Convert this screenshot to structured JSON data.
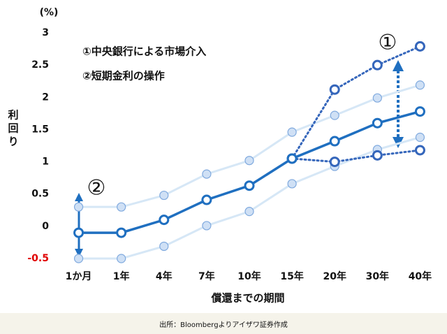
{
  "chart_data": {
    "type": "line",
    "unit_label": "(%)",
    "y_label": "利回り",
    "x_label": "償還までの期間",
    "source": "出所：Bloombergよりアイザワ証券作成",
    "annotations": [
      "①中央銀行による市場介入",
      "②短期金利の操作",
      "①",
      "②"
    ],
    "categories": [
      "1か月",
      "1年",
      "4年",
      "7年",
      "10年",
      "15年",
      "20年",
      "30年",
      "40年"
    ],
    "ylim": [
      -0.5,
      3
    ],
    "yticks": [
      -0.5,
      0,
      0.5,
      1,
      1.5,
      2,
      2.5,
      3
    ],
    "negative_tick_color": "#e00000",
    "series": [
      {
        "color": "#d6e7f6",
        "marker_fill": "#cfe0f5",
        "marker_stroke": "#7fa9de",
        "style": "solid",
        "values": [
          0.3,
          0.3,
          0.48,
          0.81,
          1.02,
          1.46,
          1.72,
          1.99,
          2.19
        ]
      },
      {
        "color": "#d6e7f6",
        "marker_fill": "#cfe0f5",
        "marker_stroke": "#7fa9de",
        "style": "solid",
        "values": [
          -0.5,
          -0.5,
          -0.31,
          0.01,
          0.23,
          0.66,
          0.93,
          1.19,
          1.38
        ]
      },
      {
        "color": "#3566bb",
        "marker_fill": "#ffffff",
        "marker_stroke": "#3566bb",
        "style": "dotted",
        "values": [
          null,
          null,
          null,
          null,
          null,
          1.05,
          2.12,
          2.5,
          2.79
        ]
      },
      {
        "color": "#3566bb",
        "marker_fill": "#ffffff",
        "marker_stroke": "#3566bb",
        "style": "dotted",
        "values": [
          null,
          null,
          null,
          null,
          null,
          1.05,
          1.0,
          1.1,
          1.18
        ]
      },
      {
        "color": "#1f6fc0",
        "marker_fill": "#ffffff",
        "marker_stroke": "#1f6fc0",
        "style": "solid",
        "values": [
          -0.1,
          -0.1,
          0.1,
          0.41,
          0.63,
          1.05,
          1.32,
          1.6,
          1.78
        ]
      }
    ]
  }
}
